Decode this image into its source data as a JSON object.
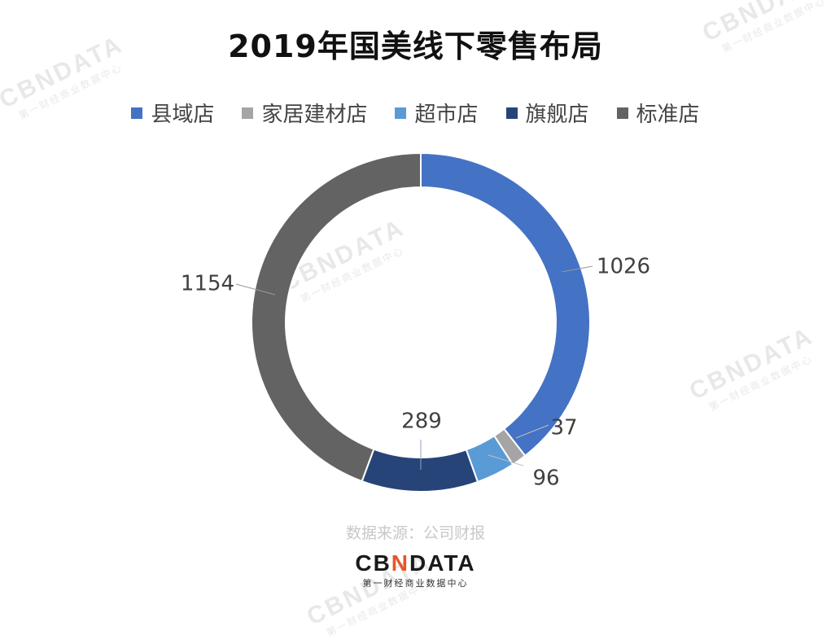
{
  "chart_data": {
    "type": "pie",
    "variant": "donut",
    "title": "2019年国美线下零售布局",
    "categories": [
      "县域店",
      "家居建材店",
      "超市店",
      "旗舰店",
      "标准店"
    ],
    "values": [
      1026,
      37,
      96,
      289,
      1154
    ],
    "colors": [
      "#4472c4",
      "#a5a5a5",
      "#5b9bd5",
      "#264478",
      "#636363"
    ],
    "legend_position": "top",
    "data_labels": [
      "1026",
      "37",
      "96",
      "289",
      "1154"
    ]
  },
  "source": "数据来源：公司财报",
  "brand": {
    "prefix": "CB",
    "mark": "N",
    "suffix": "DATA",
    "tagline": "第一财经商业数据中心"
  },
  "watermark": {
    "text": "CBNDATA",
    "tagline": "第一财经商业数据中心"
  }
}
